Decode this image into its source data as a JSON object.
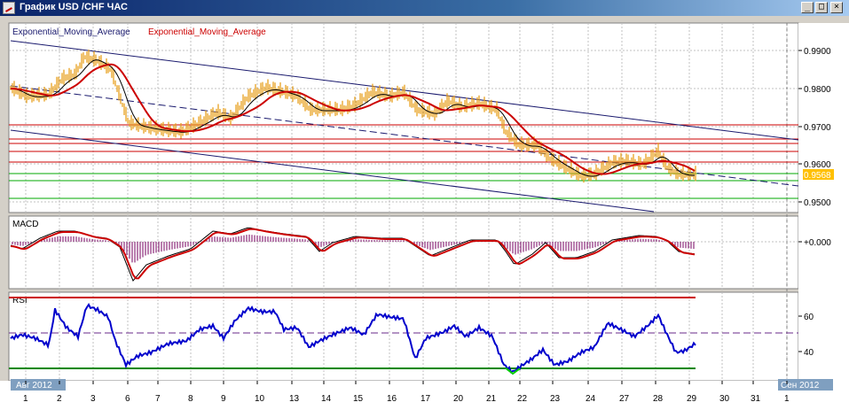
{
  "window": {
    "title": "График USD /CHF  ЧАС",
    "buttons": [
      "_",
      "□",
      "×"
    ]
  },
  "main_panel": {
    "legend_1": "Exponential_Moving_Average",
    "legend_2": "Exponential_Moving_Average",
    "legend_1_color": "#1a1a6e",
    "legend_2_color": "#cc0000",
    "price_axis": [
      "0.9900",
      "0.9800",
      "0.9700",
      "0.9600",
      "0.9500"
    ],
    "current_price": "0.9568",
    "current_price_bg": "#ffc000"
  },
  "macd_panel": {
    "label": "MACD",
    "axis": [
      "+0.000"
    ]
  },
  "rsi_panel": {
    "label": "RSI",
    "axis": [
      "60",
      "40"
    ]
  },
  "time_axis": {
    "start_label": "Авг 2012",
    "end_label": "Сен 2012",
    "days": [
      "1",
      "2",
      "3",
      "6",
      "7",
      "8",
      "9",
      "10",
      "13",
      "14",
      "15",
      "16",
      "17",
      "20",
      "21",
      "22",
      "23",
      "24",
      "27",
      "28",
      "29",
      "30",
      "31",
      "1"
    ]
  },
  "colors": {
    "price_bars": "#e8a020",
    "ema_fast": "#000000",
    "ema_slow": "#cc0000",
    "macd_line": "#cc0000",
    "macd_hist": "#8b2a7a",
    "rsi_line": "#0000cc",
    "rsi_oversold": "#00cc00",
    "trend_channel": "#1a1a6e",
    "level_lines": "#cc0000",
    "support_lines": "#00aa00"
  }
}
